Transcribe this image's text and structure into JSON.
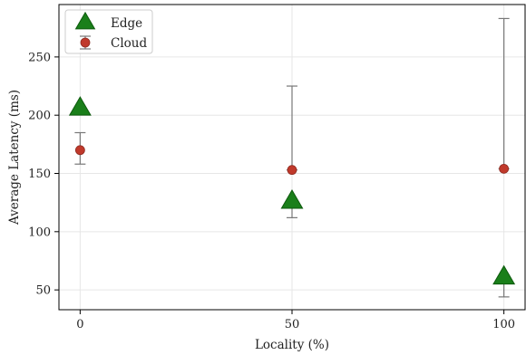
{
  "chart_data": {
    "type": "scatter",
    "xlabel": "Locality (%)",
    "ylabel": "Average Latency (ms)",
    "x_ticks": [
      0,
      50,
      100
    ],
    "y_ticks": [
      50,
      100,
      150,
      200,
      250
    ],
    "xlim": [
      -5,
      105
    ],
    "ylim": [
      33,
      295
    ],
    "grid": true,
    "legend_position": "top-left",
    "series": [
      {
        "name": "Edge",
        "marker": "triangle",
        "color": "#1a7f1a",
        "x": [
          0,
          50,
          100
        ],
        "y": [
          206,
          126,
          61
        ],
        "error_low": [
          null,
          14,
          17
        ],
        "error_high": [
          null,
          0,
          0
        ]
      },
      {
        "name": "Cloud",
        "marker": "circle",
        "color": "#c0392b",
        "x": [
          0,
          50,
          100
        ],
        "y": [
          170,
          153,
          154
        ],
        "error_low": [
          12,
          0,
          0
        ],
        "error_high": [
          15,
          72,
          129
        ]
      }
    ]
  }
}
